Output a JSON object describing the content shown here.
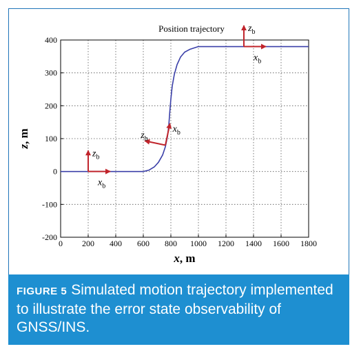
{
  "chart_data": {
    "type": "line",
    "title": "Position trajectory",
    "xlabel": "x, m",
    "ylabel": "z, m",
    "xlim": [
      0,
      1800
    ],
    "ylim": [
      -200,
      400
    ],
    "xticks": [
      0,
      200,
      400,
      600,
      800,
      1000,
      1200,
      1400,
      1600,
      1800
    ],
    "yticks": [
      -200,
      -100,
      0,
      100,
      200,
      300,
      400
    ],
    "grid": true,
    "line_color": "#3a3fa8",
    "frame_color": "#c0242b",
    "series": [
      {
        "x": [
          0,
          600,
          640,
          680,
          710,
          740,
          760,
          775,
          785,
          792,
          800,
          810,
          825,
          845,
          870,
          900,
          940,
          1000,
          1200,
          1400,
          1600,
          1800
        ],
        "y": [
          0,
          0,
          4,
          14,
          28,
          50,
          75,
          105,
          140,
          180,
          220,
          260,
          295,
          325,
          348,
          363,
          372,
          380,
          380,
          380,
          380,
          380
        ]
      }
    ],
    "annotations": [
      {
        "x": 200,
        "y": 0,
        "text_x": "x",
        "text_z": "z",
        "sub": "b"
      },
      {
        "x": 760,
        "y": 80,
        "text_x": "x",
        "text_z": "z",
        "sub": "b"
      },
      {
        "x": 1330,
        "y": 380,
        "text_x": "x",
        "text_z": "z",
        "sub": "b"
      }
    ]
  },
  "caption": {
    "label": "FIGURE 5",
    "text": "Simulated motion trajectory implemented to illustrate the error state observability of GNSS/INS."
  }
}
